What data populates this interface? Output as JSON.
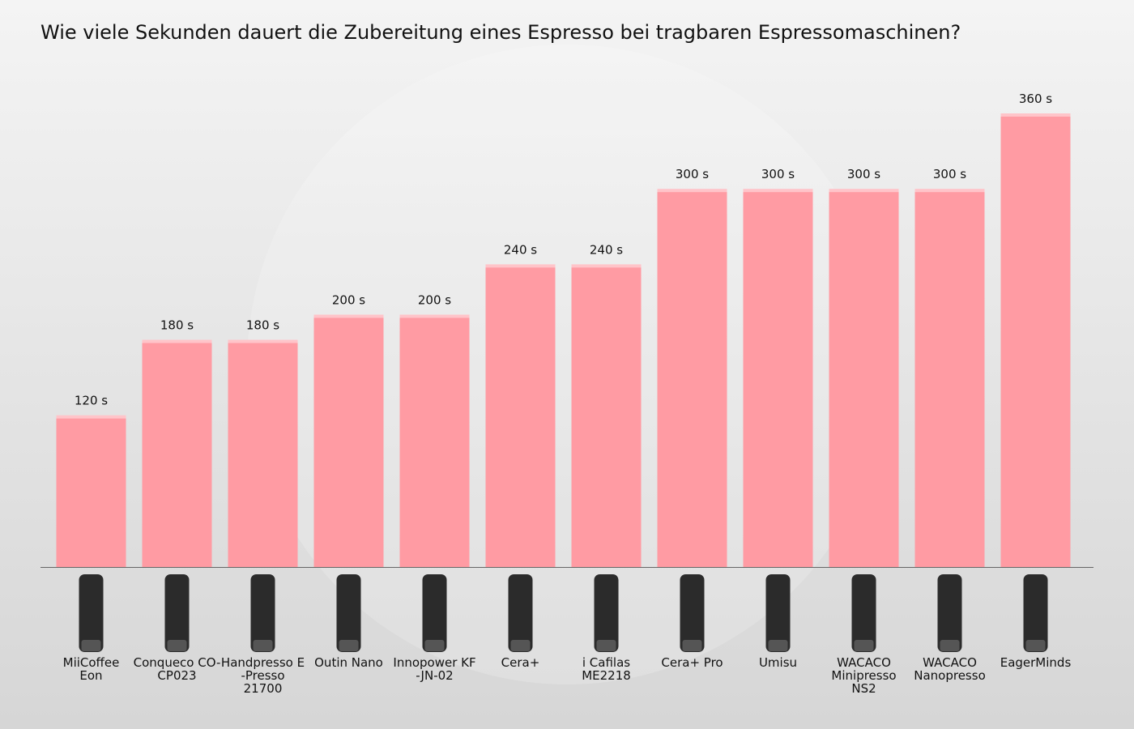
{
  "chart_data": {
    "type": "bar",
    "title": "Wie viele Sekunden dauert die Zubereitung eines Espresso bei tragbaren Espressomaschinen?",
    "categories": [
      "MiiCoffee\nEon",
      "Conqueco CO-\nCP023",
      "Handpresso E\n-Presso\n21700",
      "Outin Nano",
      "Innopower KF\n-JN-02",
      "Cera+",
      "i Cafilas\nME2218",
      "Cera+ Pro",
      "Umisu",
      "WACACO\nMinipresso\nNS2",
      "WACACO\nNanopresso",
      "EagerMinds"
    ],
    "values": [
      120,
      180,
      180,
      200,
      200,
      240,
      240,
      300,
      300,
      300,
      300,
      360
    ],
    "value_labels": [
      "120 s",
      "180 s",
      "180 s",
      "200 s",
      "200 s",
      "240 s",
      "240 s",
      "300 s",
      "300 s",
      "300 s",
      "300 s",
      "360 s"
    ],
    "color": "#ff9ba3"
  }
}
